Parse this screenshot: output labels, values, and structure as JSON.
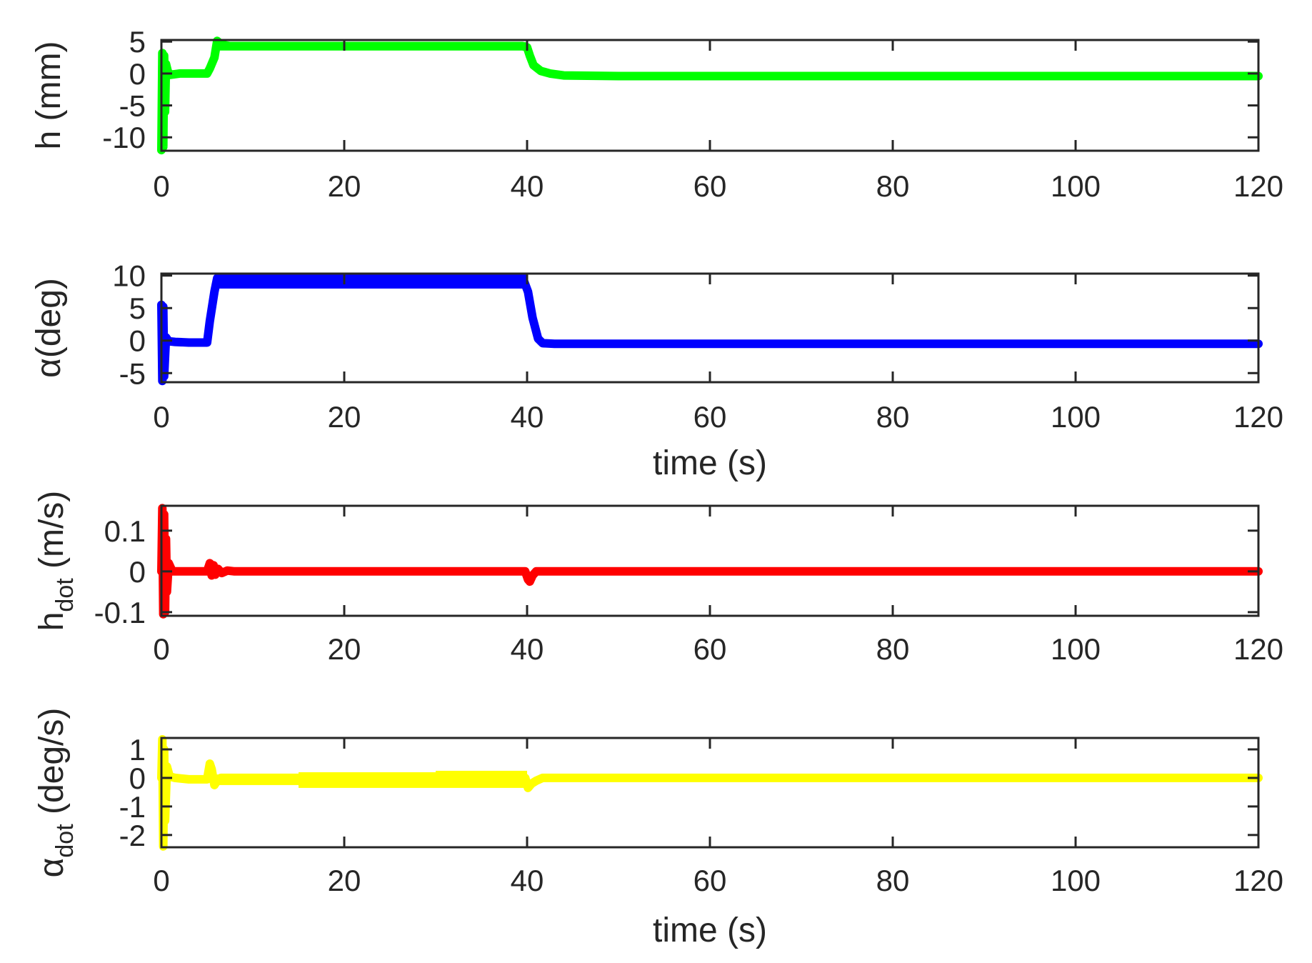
{
  "figure": {
    "background": "#ffffff",
    "axis_color": "#262626"
  },
  "chart_data": [
    {
      "type": "line",
      "title": "",
      "xlabel": "",
      "ylabel": "h (mm)",
      "ylabel_main": "h (mm)",
      "ylabel_sub": "",
      "xlim": [
        0,
        120
      ],
      "ylim": [
        -12.1,
        5.25
      ],
      "xticks": [
        0,
        20,
        40,
        60,
        80,
        100,
        120
      ],
      "yticks": [
        -10,
        -5,
        0,
        5
      ],
      "grid": false,
      "series": [
        {
          "name": "h",
          "color": "#00ff00",
          "x": [
            0,
            0.1,
            0.2,
            0.3,
            0.4,
            0.5,
            0.7,
            1.0,
            2,
            4,
            5.0,
            5.3,
            5.8,
            6.1,
            6.6,
            7.5,
            10,
            20,
            30,
            39.5,
            40.0,
            40.3,
            40.7,
            41.5,
            42.5,
            44,
            50,
            80,
            120
          ],
          "y": [
            -12,
            3.2,
            -11.5,
            2.8,
            -6,
            1.5,
            0.3,
            -0.2,
            0,
            0,
            0,
            0.8,
            2.5,
            5.1,
            4.5,
            4.3,
            4.3,
            4.3,
            4.3,
            4.3,
            4.1,
            2.8,
            1.3,
            0.4,
            0.0,
            -0.3,
            -0.4,
            -0.4,
            -0.4
          ],
          "band": [
            [
              5.8,
              40.0,
              3.6,
              4.9
            ]
          ]
        }
      ]
    },
    {
      "type": "line",
      "title": "",
      "xlabel": "time (s)",
      "ylabel": "α(deg)",
      "ylabel_main": "α(deg)",
      "ylabel_sub": "",
      "xlim": [
        0,
        120
      ],
      "ylim": [
        -6.4,
        10.3
      ],
      "xticks": [
        0,
        20,
        40,
        60,
        80,
        100,
        120
      ],
      "yticks": [
        -5,
        0,
        5,
        10
      ],
      "grid": false,
      "series": [
        {
          "name": "alpha",
          "color": "#0000ff",
          "x": [
            0,
            0.1,
            0.2,
            0.3,
            0.5,
            0.8,
            1.5,
            3,
            5.0,
            5.3,
            5.8,
            6.1,
            7,
            10,
            20,
            30,
            39.7,
            40.1,
            40.6,
            41.2,
            41.7,
            43,
            60,
            120
          ],
          "y": [
            5.5,
            -6.2,
            5.2,
            -5.5,
            0.5,
            -0.1,
            -0.2,
            -0.3,
            -0.3,
            3,
            7.5,
            9.6,
            9.0,
            8.8,
            8.9,
            9.0,
            9.0,
            7.5,
            3.5,
            0.3,
            -0.4,
            -0.5,
            -0.5,
            -0.5
          ],
          "band": [
            [
              6.0,
              40.0,
              8.0,
              10.2
            ]
          ]
        }
      ]
    },
    {
      "type": "line",
      "title": "",
      "xlabel": "",
      "ylabel": "h_dot (m/s)",
      "ylabel_main": "h",
      "ylabel_sub": "dot",
      "ylabel_unit": " (m/s)",
      "xlim": [
        0,
        120
      ],
      "ylim": [
        -0.109,
        0.161
      ],
      "xticks": [
        0,
        20,
        40,
        60,
        80,
        100,
        120
      ],
      "yticks": [
        -0.1,
        0,
        0.1
      ],
      "ytick_labels": [
        "-0.1",
        "0",
        "0.1"
      ],
      "grid": false,
      "series": [
        {
          "name": "h_dot",
          "color": "#ff0000",
          "x": [
            0,
            0.1,
            0.2,
            0.3,
            0.4,
            0.5,
            0.6,
            0.8,
            1.2,
            2,
            5.0,
            5.3,
            5.5,
            5.7,
            5.9,
            6.2,
            6.6,
            7.2,
            8,
            20,
            39.8,
            40.1,
            40.3,
            40.6,
            41,
            60,
            120
          ],
          "y": [
            0.0,
            0.155,
            -0.105,
            0.14,
            -0.1,
            0.08,
            -0.05,
            0.02,
            0.0,
            0.0,
            0.0,
            0.02,
            -0.01,
            0.015,
            -0.008,
            0.006,
            -0.004,
            0.002,
            0.0,
            0.0,
            0.0,
            -0.02,
            -0.025,
            -0.01,
            0.0,
            0.0,
            0.0
          ],
          "band": []
        }
      ]
    },
    {
      "type": "line",
      "title": "",
      "xlabel": "time (s)",
      "ylabel": "α_dot (deg/s)",
      "ylabel_main": "α",
      "ylabel_sub": "dot",
      "ylabel_unit": " (deg/s)",
      "xlim": [
        0,
        120
      ],
      "ylim": [
        -2.43,
        1.4
      ],
      "xticks": [
        0,
        20,
        40,
        60,
        80,
        100,
        120
      ],
      "yticks": [
        -2,
        -1,
        0,
        1
      ],
      "grid": false,
      "series": [
        {
          "name": "alpha_dot",
          "color": "#ffff00",
          "x": [
            0,
            0.1,
            0.2,
            0.3,
            0.4,
            0.6,
            0.9,
            1.5,
            3,
            5.0,
            5.3,
            5.5,
            5.8,
            6.1,
            6.5,
            7.5,
            10,
            20,
            30,
            39.8,
            40.1,
            40.5,
            41.0,
            41.7,
            43,
            60,
            120
          ],
          "y": [
            0,
            1.35,
            -2.4,
            1.0,
            -1.5,
            0.4,
            0.05,
            0.0,
            -0.05,
            -0.05,
            0.5,
            0.3,
            -0.25,
            -0.1,
            0.0,
            0.0,
            0.0,
            0.0,
            0.0,
            0.0,
            -0.35,
            -0.2,
            -0.1,
            0.0,
            0.0,
            0.0,
            0.0
          ],
          "band": [
            [
              6.0,
              15.0,
              -0.25,
              0.12
            ],
            [
              15.0,
              30.0,
              -0.35,
              0.2
            ],
            [
              30.0,
              40.0,
              -0.35,
              0.25
            ]
          ]
        }
      ]
    }
  ]
}
